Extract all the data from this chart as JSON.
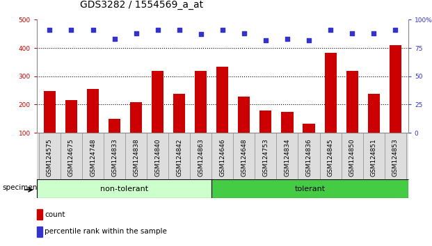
{
  "title": "GDS3282 / 1554569_a_at",
  "categories": [
    "GSM124575",
    "GSM124675",
    "GSM124748",
    "GSM124833",
    "GSM124838",
    "GSM124840",
    "GSM124842",
    "GSM124863",
    "GSM124646",
    "GSM124648",
    "GSM124753",
    "GSM124834",
    "GSM124836",
    "GSM124845",
    "GSM124850",
    "GSM124851",
    "GSM124853"
  ],
  "bar_values": [
    248,
    215,
    255,
    150,
    208,
    320,
    237,
    320,
    333,
    227,
    180,
    175,
    132,
    382,
    320,
    238,
    410
  ],
  "dot_values": [
    91,
    91,
    91,
    83,
    88,
    91,
    91,
    87,
    91,
    88,
    82,
    83,
    82,
    91,
    88,
    88,
    91
  ],
  "bar_color": "#cc0000",
  "dot_color": "#3333cc",
  "bar_base": 100,
  "ylim_left": [
    100,
    500
  ],
  "ylim_right": [
    0,
    100
  ],
  "yticks_left": [
    100,
    200,
    300,
    400,
    500
  ],
  "yticks_right": [
    0,
    25,
    50,
    75,
    100
  ],
  "ytick_labels_right": [
    "0",
    "25",
    "50",
    "75",
    "100%"
  ],
  "grid_values": [
    200,
    300,
    400
  ],
  "group1_label": "non-tolerant",
  "group2_label": "tolerant",
  "group1_count": 8,
  "group2_count": 9,
  "specimen_label": "specimen",
  "legend_bar_label": "count",
  "legend_dot_label": "percentile rank within the sample",
  "group1_color": "#ccffcc",
  "group2_color": "#44cc44",
  "bg_color": "#ffffff",
  "plot_bg_color": "#ffffff",
  "title_fontsize": 10,
  "tick_fontsize": 6.5,
  "axis_label_color_left": "#cc0000",
  "axis_label_color_right": "#3333cc"
}
